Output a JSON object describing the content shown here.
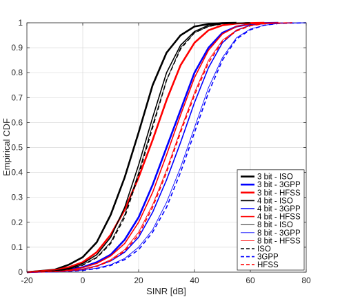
{
  "chart_data": {
    "type": "line",
    "title": "",
    "xlabel": "SINR [dB]",
    "ylabel": "Empirical CDF",
    "xlim": [
      -20,
      80
    ],
    "ylim": [
      0,
      1
    ],
    "xticks": [
      -20,
      0,
      20,
      40,
      60,
      80
    ],
    "yticks": [
      0,
      0.1,
      0.2,
      0.3,
      0.4,
      0.5,
      0.6,
      0.7,
      0.8,
      0.9,
      1
    ],
    "grid": true,
    "legend_position": "bottom-right",
    "series": [
      {
        "name": "3 bit - ISO",
        "color": "#000000",
        "style": "solid",
        "weight": "thick",
        "x": [
          -20,
          -10,
          -5,
          0,
          5,
          10,
          15,
          20,
          25,
          30,
          35,
          40,
          45,
          50,
          55
        ],
        "y": [
          0,
          0.01,
          0.03,
          0.06,
          0.12,
          0.23,
          0.38,
          0.56,
          0.75,
          0.88,
          0.95,
          0.985,
          0.995,
          0.999,
          1
        ]
      },
      {
        "name": "3 bit - 3GPP",
        "color": "#0000ff",
        "style": "solid",
        "weight": "thick",
        "x": [
          -20,
          -10,
          -5,
          0,
          5,
          10,
          15,
          20,
          25,
          30,
          35,
          40,
          45,
          50,
          55,
          60,
          65,
          70
        ],
        "y": [
          0,
          0.004,
          0.01,
          0.02,
          0.04,
          0.07,
          0.13,
          0.22,
          0.35,
          0.5,
          0.65,
          0.8,
          0.9,
          0.96,
          0.985,
          0.995,
          0.999,
          1
        ]
      },
      {
        "name": "3 bit - HFSS",
        "color": "#ff0000",
        "style": "solid",
        "weight": "thick",
        "x": [
          -20,
          -10,
          -5,
          0,
          5,
          10,
          15,
          20,
          25,
          30,
          35,
          40,
          45,
          50,
          55,
          60,
          65
        ],
        "y": [
          0,
          0.008,
          0.02,
          0.04,
          0.08,
          0.15,
          0.25,
          0.38,
          0.53,
          0.69,
          0.83,
          0.92,
          0.97,
          0.99,
          0.997,
          0.999,
          1
        ]
      },
      {
        "name": "4 bit - ISO",
        "color": "#000000",
        "style": "solid",
        "weight": "medium",
        "x": [
          -20,
          -10,
          -5,
          0,
          5,
          10,
          15,
          20,
          25,
          30,
          35,
          40,
          45,
          50,
          55,
          60
        ],
        "y": [
          0,
          0.005,
          0.015,
          0.035,
          0.07,
          0.14,
          0.26,
          0.43,
          0.62,
          0.8,
          0.91,
          0.965,
          0.99,
          0.997,
          0.999,
          1
        ]
      },
      {
        "name": "4 bit - 3GPP",
        "color": "#0000ff",
        "style": "solid",
        "weight": "medium",
        "x": [
          -20,
          -10,
          -5,
          0,
          5,
          10,
          15,
          20,
          25,
          30,
          35,
          40,
          45,
          50,
          55,
          60,
          65,
          70,
          75
        ],
        "y": [
          0,
          0.002,
          0.006,
          0.012,
          0.025,
          0.045,
          0.08,
          0.14,
          0.24,
          0.37,
          0.52,
          0.68,
          0.82,
          0.92,
          0.97,
          0.99,
          0.997,
          0.999,
          1
        ]
      },
      {
        "name": "4 bit - HFSS",
        "color": "#ff0000",
        "style": "solid",
        "weight": "medium",
        "x": [
          -20,
          -10,
          -5,
          0,
          5,
          10,
          15,
          20,
          25,
          30,
          35,
          40,
          45,
          50,
          55,
          60,
          65,
          70
        ],
        "y": [
          0,
          0.003,
          0.008,
          0.018,
          0.035,
          0.065,
          0.115,
          0.2,
          0.32,
          0.47,
          0.63,
          0.78,
          0.89,
          0.955,
          0.985,
          0.996,
          0.999,
          1
        ]
      },
      {
        "name": "8 bit - ISO",
        "color": "#000000",
        "style": "solid",
        "weight": "thin",
        "x": [
          -20,
          -10,
          -5,
          0,
          5,
          10,
          15,
          20,
          25,
          30,
          35,
          40,
          45,
          50,
          55,
          60
        ],
        "y": [
          0,
          0.004,
          0.012,
          0.03,
          0.06,
          0.12,
          0.23,
          0.4,
          0.59,
          0.77,
          0.9,
          0.96,
          0.985,
          0.996,
          0.999,
          1
        ]
      },
      {
        "name": "8 bit - 3GPP",
        "color": "#0000ff",
        "style": "solid",
        "weight": "thin",
        "x": [
          -20,
          -10,
          -5,
          0,
          5,
          10,
          15,
          20,
          25,
          30,
          35,
          40,
          45,
          50,
          55,
          60,
          65,
          70,
          75,
          80
        ],
        "y": [
          0,
          0.001,
          0.004,
          0.008,
          0.016,
          0.03,
          0.055,
          0.1,
          0.17,
          0.28,
          0.42,
          0.58,
          0.74,
          0.86,
          0.94,
          0.975,
          0.99,
          0.997,
          0.999,
          1
        ]
      },
      {
        "name": "8 bit - HFSS",
        "color": "#ff0000",
        "style": "solid",
        "weight": "thin",
        "x": [
          -20,
          -10,
          -5,
          0,
          5,
          10,
          15,
          20,
          25,
          30,
          35,
          40,
          45,
          50,
          55,
          60,
          65,
          70,
          75
        ],
        "y": [
          0,
          0.002,
          0.006,
          0.012,
          0.025,
          0.05,
          0.09,
          0.16,
          0.27,
          0.41,
          0.57,
          0.72,
          0.85,
          0.93,
          0.97,
          0.99,
          0.997,
          0.999,
          1
        ]
      },
      {
        "name": "ISO",
        "color": "#000000",
        "style": "dashed",
        "weight": "medium",
        "x": [
          -20,
          -10,
          -5,
          0,
          5,
          10,
          15,
          20,
          25,
          30,
          35,
          40,
          45,
          50,
          55,
          60
        ],
        "y": [
          0,
          0.004,
          0.012,
          0.028,
          0.058,
          0.115,
          0.22,
          0.39,
          0.58,
          0.77,
          0.895,
          0.96,
          0.985,
          0.996,
          0.999,
          1
        ]
      },
      {
        "name": "3GPP",
        "color": "#0000ff",
        "style": "dashed",
        "weight": "medium",
        "x": [
          -20,
          -10,
          -5,
          0,
          5,
          10,
          15,
          20,
          25,
          30,
          35,
          40,
          45,
          50,
          55,
          60,
          65,
          70,
          75,
          80
        ],
        "y": [
          0,
          0.001,
          0.003,
          0.007,
          0.014,
          0.027,
          0.05,
          0.09,
          0.16,
          0.26,
          0.4,
          0.56,
          0.72,
          0.85,
          0.935,
          0.972,
          0.99,
          0.997,
          0.999,
          1
        ]
      },
      {
        "name": "HFSS",
        "color": "#ff0000",
        "style": "dashed",
        "weight": "medium",
        "x": [
          -20,
          -10,
          -5,
          0,
          5,
          10,
          15,
          20,
          25,
          30,
          35,
          40,
          45,
          50,
          55,
          60,
          65,
          70,
          75
        ],
        "y": [
          0,
          0.002,
          0.005,
          0.011,
          0.023,
          0.046,
          0.085,
          0.15,
          0.26,
          0.4,
          0.56,
          0.71,
          0.84,
          0.925,
          0.967,
          0.988,
          0.996,
          0.999,
          1
        ]
      }
    ]
  }
}
